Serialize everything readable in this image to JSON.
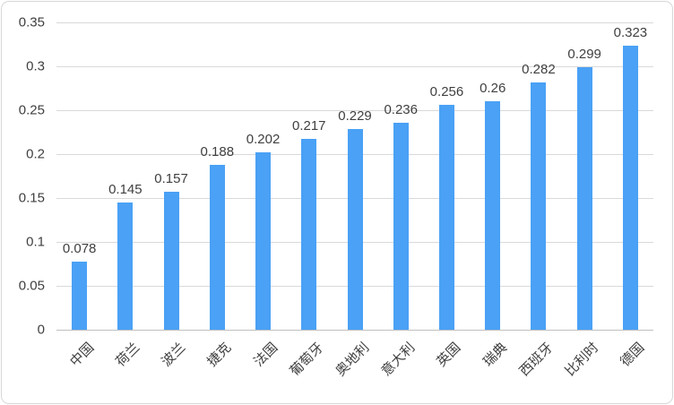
{
  "chart_data": {
    "type": "bar",
    "title": "",
    "xlabel": "",
    "ylabel": "",
    "categories": [
      "中国",
      "荷兰",
      "波兰",
      "捷克",
      "法国",
      "葡萄牙",
      "奥地利",
      "意大利",
      "英国",
      "瑞典",
      "西班牙",
      "比利时",
      "德国"
    ],
    "values": [
      0.078,
      0.145,
      0.157,
      0.188,
      0.202,
      0.217,
      0.229,
      0.236,
      0.256,
      0.26,
      0.282,
      0.299,
      0.323
    ],
    "data_labels": [
      "0.078",
      "0.145",
      "0.157",
      "0.188",
      "0.202",
      "0.217",
      "0.229",
      "0.236",
      "0.256",
      "0.26",
      "0.282",
      "0.299",
      "0.323"
    ],
    "ylim": [
      0,
      0.35
    ],
    "ytick_step": 0.05,
    "y_tick_labels": [
      "0.35",
      "0.3",
      "0.25",
      "0.2",
      "0.15",
      "0.1",
      "0.05",
      "0"
    ],
    "grid": true,
    "legend": false,
    "colors": {
      "bar_fill": "#4aa1f5",
      "gridline": "#d9d9d9",
      "axis_line": "#bfbfbf",
      "text": "#3f3f3f",
      "frame_border": "#d7d7d7",
      "background": "#ffffff"
    }
  }
}
